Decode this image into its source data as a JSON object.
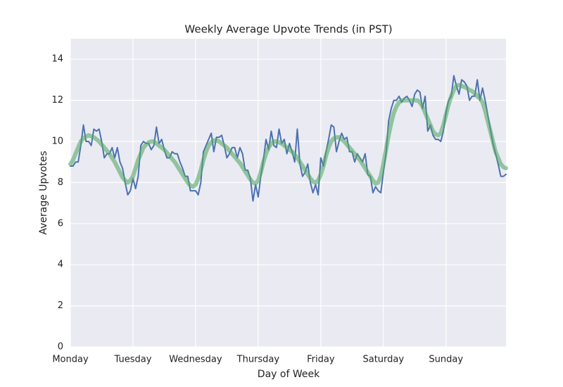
{
  "chart_data": {
    "type": "line",
    "title": "Weekly Average Upvote Trends (in PST)",
    "xlabel": "Day of Week",
    "ylabel": "Average Upvotes",
    "x": [
      0,
      1,
      2,
      3,
      4,
      5,
      6,
      7,
      8,
      9,
      10,
      11,
      12,
      13,
      14,
      15,
      16,
      17,
      18,
      19,
      20,
      21,
      22,
      23,
      24,
      25,
      26,
      27,
      28,
      29,
      30,
      31,
      32,
      33,
      34,
      35,
      36,
      37,
      38,
      39,
      40,
      41,
      42,
      43,
      44,
      45,
      46,
      47,
      48,
      49,
      50,
      51,
      52,
      53,
      54,
      55,
      56,
      57,
      58,
      59,
      60,
      61,
      62,
      63,
      64,
      65,
      66,
      67,
      68,
      69,
      70,
      71,
      72,
      73,
      74,
      75,
      76,
      77,
      78,
      79,
      80,
      81,
      82,
      83,
      84,
      85,
      86,
      87,
      88,
      89,
      90,
      91,
      92,
      93,
      94,
      95,
      96,
      97,
      98,
      99,
      100,
      101,
      102,
      103,
      104,
      105,
      106,
      107,
      108,
      109,
      110,
      111,
      112,
      113,
      114,
      115,
      116,
      117,
      118,
      119,
      120,
      121,
      122,
      123,
      124,
      125,
      126,
      127,
      128,
      129,
      130,
      131,
      132,
      133,
      134,
      135,
      136,
      137,
      138,
      139,
      140,
      141,
      142,
      143,
      144,
      145,
      146,
      147,
      148,
      149,
      150,
      151,
      152,
      153,
      154,
      155,
      156,
      157,
      158,
      159,
      160,
      161,
      162,
      163,
      164,
      165,
      166,
      167
    ],
    "series": [
      {
        "color": "#4c72b0",
        "width": 2,
        "opacity": 1,
        "values": [
          8.8,
          8.8,
          9.0,
          9.0,
          9.8,
          10.8,
          10.0,
          10.0,
          9.8,
          10.6,
          10.5,
          10.6,
          10.0,
          9.2,
          9.4,
          9.4,
          9.7,
          9.2,
          9.7,
          9.0,
          8.7,
          8.0,
          7.4,
          7.6,
          8.2,
          7.7,
          8.3,
          9.8,
          10.0,
          9.9,
          9.9,
          9.6,
          9.8,
          10.7,
          9.9,
          10.1,
          9.6,
          9.2,
          9.2,
          9.5,
          9.4,
          9.4,
          9.0,
          8.7,
          8.3,
          8.3,
          7.6,
          7.6,
          7.6,
          7.4,
          8.0,
          9.5,
          9.8,
          10.1,
          10.4,
          9.5,
          10.2,
          10.2,
          10.3,
          9.8,
          9.2,
          9.4,
          9.7,
          9.7,
          9.2,
          9.7,
          9.4,
          8.6,
          8.6,
          8.2,
          7.1,
          7.9,
          7.3,
          8.3,
          9.1,
          10.1,
          9.6,
          10.5,
          9.8,
          9.7,
          10.6,
          9.9,
          10.1,
          9.4,
          9.9,
          9.5,
          9.0,
          10.6,
          8.9,
          8.3,
          8.5,
          8.9,
          8.0,
          7.5,
          7.9,
          7.4,
          9.2,
          8.8,
          9.5,
          10.1,
          10.8,
          10.7,
          9.5,
          10.0,
          10.4,
          10.1,
          10.2,
          9.5,
          9.5,
          9.0,
          9.4,
          9.2,
          9.0,
          9.4,
          8.4,
          8.3,
          7.5,
          7.8,
          7.6,
          7.5,
          8.5,
          9.4,
          11.0,
          11.6,
          12.0,
          12.0,
          12.2,
          11.9,
          12.1,
          12.2,
          12.0,
          11.7,
          12.3,
          12.5,
          12.4,
          11.6,
          12.2,
          10.5,
          10.8,
          10.3,
          10.1,
          10.1,
          10.0,
          10.5,
          11.4,
          12.0,
          12.2,
          13.2,
          12.7,
          12.3,
          13.0,
          12.9,
          12.7,
          12.0,
          12.2,
          12.2,
          13.0,
          12.0,
          12.6,
          12.0,
          11.3,
          10.6,
          9.9,
          9.4,
          8.9,
          8.3,
          8.3,
          8.4
        ]
      },
      {
        "color": "#55a868",
        "width": 6,
        "opacity": 0.6,
        "values": [
          8.9,
          9.1,
          9.4,
          9.7,
          10.0,
          10.15,
          10.25,
          10.3,
          10.25,
          10.2,
          10.1,
          10.0,
          9.85,
          9.7,
          9.55,
          9.4,
          9.2,
          9.0,
          8.75,
          8.5,
          8.25,
          8.1,
          8.0,
          8.1,
          8.3,
          8.7,
          9.1,
          9.4,
          9.7,
          9.85,
          9.95,
          10.0,
          10.0,
          9.9,
          9.8,
          9.7,
          9.6,
          9.45,
          9.3,
          9.15,
          9.0,
          8.8,
          8.6,
          8.4,
          8.2,
          8.0,
          7.85,
          7.8,
          7.9,
          8.2,
          8.6,
          9.1,
          9.5,
          9.8,
          9.95,
          10.05,
          10.05,
          10.0,
          9.9,
          9.8,
          9.7,
          9.55,
          9.4,
          9.25,
          9.1,
          8.95,
          8.75,
          8.55,
          8.35,
          8.15,
          8.0,
          7.95,
          8.1,
          8.5,
          9.0,
          9.4,
          9.7,
          9.9,
          10.0,
          10.0,
          9.95,
          9.9,
          9.8,
          9.7,
          9.6,
          9.5,
          9.35,
          9.2,
          9.0,
          8.8,
          8.6,
          8.4,
          8.2,
          8.05,
          8.0,
          8.1,
          8.4,
          8.8,
          9.3,
          9.7,
          10.0,
          10.15,
          10.2,
          10.2,
          10.1,
          10.0,
          9.85,
          9.7,
          9.55,
          9.4,
          9.25,
          9.1,
          8.9,
          8.7,
          8.5,
          8.3,
          8.1,
          7.95,
          8.0,
          8.3,
          8.9,
          9.6,
          10.3,
          10.9,
          11.4,
          11.7,
          11.9,
          12.0,
          12.0,
          12.0,
          12.0,
          12.0,
          12.0,
          12.0,
          11.9,
          11.7,
          11.4,
          11.1,
          10.8,
          10.5,
          10.35,
          10.3,
          10.4,
          10.8,
          11.3,
          11.8,
          12.2,
          12.5,
          12.7,
          12.75,
          12.7,
          12.65,
          12.6,
          12.5,
          12.45,
          12.35,
          12.2,
          12.1,
          11.9,
          11.5,
          11.0,
          10.5,
          10.0,
          9.5,
          9.2,
          8.9,
          8.75,
          8.7
        ]
      }
    ],
    "xlim": [
      0,
      167
    ],
    "ylim": [
      0,
      15
    ],
    "xticks": [
      {
        "value": 0,
        "label": "Monday"
      },
      {
        "value": 24,
        "label": "Tuesday"
      },
      {
        "value": 48,
        "label": "Wednesday"
      },
      {
        "value": 72,
        "label": "Thursday"
      },
      {
        "value": 96,
        "label": "Friday"
      },
      {
        "value": 120,
        "label": "Saturday"
      },
      {
        "value": 144,
        "label": "Sunday"
      }
    ],
    "yticks": [
      0,
      2,
      4,
      6,
      8,
      10,
      12,
      14
    ],
    "grid": true
  }
}
